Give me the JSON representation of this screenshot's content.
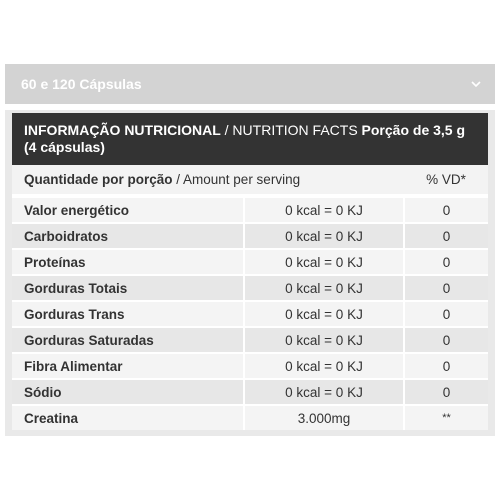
{
  "accordion": {
    "label": "60 e 120 Cápsulas",
    "icon": "chevron-down-icon"
  },
  "table": {
    "title_bold": "INFORMAÇÃO NUTRICIONAL",
    "title_normal": " / NUTRITION FACTS ",
    "title_serving": "Porção de 3,5 g (4 cápsulas)",
    "header_bold": "Quantidade por porção",
    "header_normal": " / Amount per serving",
    "header_vd": "% VD*",
    "rows": [
      {
        "name": "Valor energético",
        "amount": "0 kcal = 0 KJ",
        "vd": "0"
      },
      {
        "name": "Carboidratos",
        "amount": "0 kcal = 0 KJ",
        "vd": "0"
      },
      {
        "name": "Proteínas",
        "amount": "0 kcal = 0 KJ",
        "vd": "0"
      },
      {
        "name": "Gorduras Totais",
        "amount": "0 kcal = 0 KJ",
        "vd": "0"
      },
      {
        "name": "Gorduras Trans",
        "amount": "0 kcal = 0 KJ",
        "vd": "0"
      },
      {
        "name": "Gorduras Saturadas",
        "amount": "0 kcal = 0 KJ",
        "vd": "0"
      },
      {
        "name": "Fibra Alimentar",
        "amount": "0 kcal = 0 KJ",
        "vd": "0"
      },
      {
        "name": "Sódio",
        "amount": "0 kcal = 0 KJ",
        "vd": "0"
      },
      {
        "name": "Creatina",
        "amount": "3.000mg",
        "vd": "**"
      }
    ]
  },
  "colors": {
    "accordion_bg": "#d3d3d3",
    "title_bg": "#333333",
    "row_light": "#f4f4f4",
    "row_dark": "#e7e7e7"
  }
}
